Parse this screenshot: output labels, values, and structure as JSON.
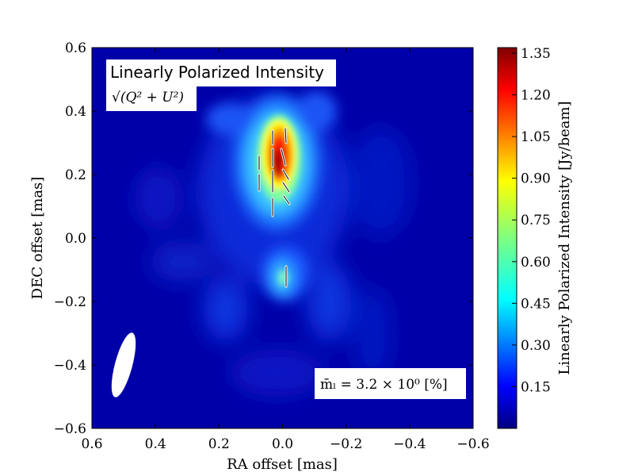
{
  "chart_data": {
    "type": "heatmap",
    "title_box": {
      "title": "Linearly Polarized Intensity",
      "formula": "√(Q² + U²)"
    },
    "xlabel": "RA offset [mas]",
    "ylabel": "DEC offset [mas]",
    "xlim": [
      0.6,
      -0.6
    ],
    "ylim": [
      -0.6,
      0.6
    ],
    "x_ticks": [
      "0.6",
      "0.4",
      "0.2",
      "0.0",
      "−0.2",
      "−0.4",
      "−0.6"
    ],
    "y_ticks": [
      "−0.6",
      "−0.4",
      "−0.2",
      "0.0",
      "0.2",
      "0.4",
      "0.6"
    ],
    "colorbar": {
      "label": "Linearly Polarized Intensity [Jy/beam]",
      "range": [
        0.0,
        1.37
      ],
      "ticks": [
        "0.15",
        "0.30",
        "0.45",
        "0.60",
        "0.75",
        "0.90",
        "1.05",
        "1.20",
        "1.35"
      ],
      "colormap": "jet"
    },
    "peak": {
      "ra": 0.02,
      "dec": 0.24,
      "value": 1.37
    },
    "secondary_feature": {
      "ra": -0.01,
      "dec": -0.13,
      "value": 0.3
    },
    "fractional_polarization_text": "m̄ₗ =  3.2 × 10⁰ [%]",
    "beam": {
      "ra": 0.5,
      "dec": -0.4,
      "major": 0.21,
      "minor": 0.06,
      "pa_deg": 15
    },
    "evpa_vectors_count": 12
  }
}
